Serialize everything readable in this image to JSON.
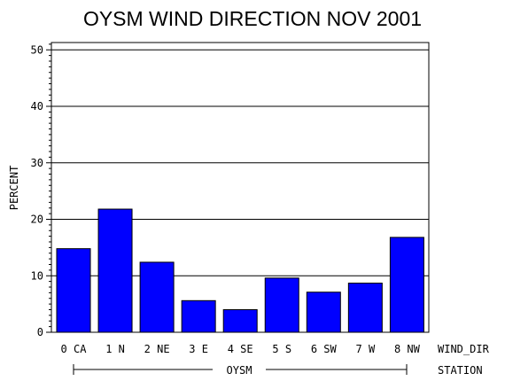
{
  "chart_data": {
    "type": "bar",
    "title": "OYSM WIND DIRECTION NOV 2001",
    "ylabel": "PERCENT",
    "xlabel": "WIND_DIR",
    "group_label": "OYSM",
    "group_axis_label": "STATION",
    "categories": [
      "0 CA",
      "1 N",
      "2 NE",
      "3 E",
      "4 SE",
      "5 S",
      "6 SW",
      "7 W",
      "8 NW"
    ],
    "values": [
      14.8,
      21.8,
      12.4,
      5.6,
      4.0,
      9.6,
      7.1,
      8.7,
      16.8
    ],
    "ylim": [
      0,
      51
    ],
    "yticks": [
      "0",
      "10",
      "20",
      "30",
      "40",
      "50"
    ],
    "grid": true,
    "bar_color": "#0000ff"
  }
}
